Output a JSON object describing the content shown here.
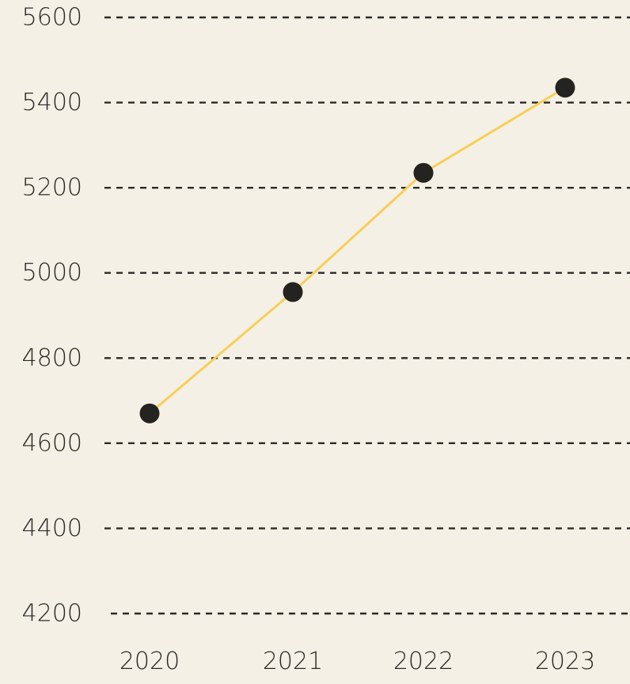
{
  "chart_data": {
    "type": "line",
    "title": "",
    "xlabel": "",
    "ylabel": "",
    "categories": [
      "2020",
      "2021",
      "2022",
      "2023"
    ],
    "y_ticks": [
      "4200",
      "4400",
      "4600",
      "4800",
      "5000",
      "5200",
      "5400",
      "5600"
    ],
    "ylim": [
      4200,
      5600
    ],
    "grid": true,
    "legend": "none",
    "series": [
      {
        "values": [
          4670,
          4955,
          5235,
          5435
        ]
      }
    ],
    "colors": {
      "background": "#f4f0e6",
      "line": "#f7cf57",
      "marker": "#24231f",
      "grid": "#2a2a27",
      "text": "#2a2a27"
    }
  }
}
